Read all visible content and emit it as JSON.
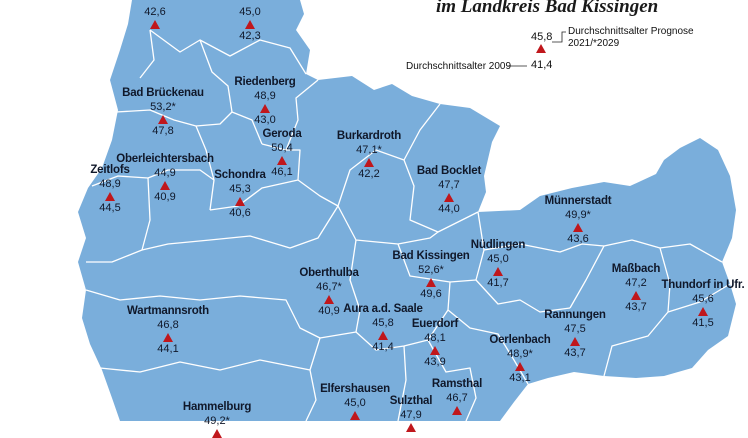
{
  "title": "im Landkreis Bad Kissingen",
  "legend": {
    "prognosis_value": "45,8",
    "base_value": "41,4",
    "prognosis_label_line1": "Durchschnittsalter Prognose",
    "prognosis_label_line2": "2021/*2029",
    "base_label": "Durchschnittsalter 2009"
  },
  "colors": {
    "land": "#7aaedb",
    "border": "#ffffff",
    "marker": "#c0171c"
  },
  "places": [
    {
      "name": "",
      "top": "42,6",
      "bottom": ""
    },
    {
      "name": "",
      "top": "45,0",
      "bottom": "42,3"
    },
    {
      "name": "Riedenberg",
      "top": "48,9",
      "bottom": "43,0"
    },
    {
      "name": "Bad Brückenau",
      "top": "53,2*",
      "bottom": "47,8"
    },
    {
      "name": "Geroda",
      "top": "50,4",
      "bottom": "46,1"
    },
    {
      "name": "Burkardroth",
      "top": "47,1*",
      "bottom": "42,2"
    },
    {
      "name": "Oberleichtersbach",
      "top": "44,9",
      "bottom": "40,9"
    },
    {
      "name": "Zeitlofs",
      "top": "48,9",
      "bottom": "44,5"
    },
    {
      "name": "Schondra",
      "top": "45,3",
      "bottom": "40,6"
    },
    {
      "name": "Bad Bocklet",
      "top": "47,7",
      "bottom": "44,0"
    },
    {
      "name": "Münnerstadt",
      "top": "49,9*",
      "bottom": "43,6"
    },
    {
      "name": "Nüdlingen",
      "top": "45,0",
      "bottom": "41,7"
    },
    {
      "name": "Bad Kissingen",
      "top": "52,6*",
      "bottom": "49,6"
    },
    {
      "name": "Oberthulba",
      "top": "46,7*",
      "bottom": "40,9"
    },
    {
      "name": "Maßbach",
      "top": "47,2",
      "bottom": "43,7"
    },
    {
      "name": "Thundorf in Ufr.",
      "top": "45,6",
      "bottom": "41,5"
    },
    {
      "name": "Wartmannsroth",
      "top": "46,8",
      "bottom": "44,1"
    },
    {
      "name": "Aura a.d. Saale",
      "top": "45,8",
      "bottom": "41,4"
    },
    {
      "name": "Rannungen",
      "top": "47,5",
      "bottom": "43,7"
    },
    {
      "name": "Euerdorf",
      "top": "48,1",
      "bottom": "43,9"
    },
    {
      "name": "Oerlenbach",
      "top": "48,9*",
      "bottom": "43,1"
    },
    {
      "name": "Ramsthal",
      "top": "46,7",
      "bottom": ""
    },
    {
      "name": "Hammelburg",
      "top": "49,2*",
      "bottom": ""
    },
    {
      "name": "Elfershausen",
      "top": "45,0",
      "bottom": ""
    },
    {
      "name": "Sulzthal",
      "top": "47,9",
      "bottom": ""
    }
  ]
}
